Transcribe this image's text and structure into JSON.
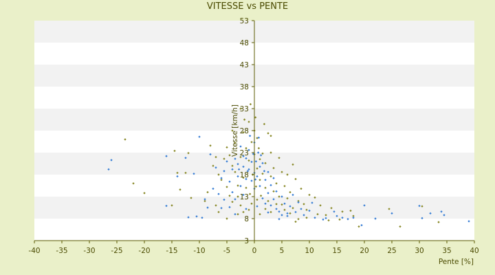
{
  "chart_data": {
    "type": "scatter",
    "title": "VITESSE vs PENTE",
    "xlabel": "Pente [%]",
    "ylabel": "Vitesse [km/h]",
    "xlim": [
      -40,
      40
    ],
    "ylim": [
      3,
      53
    ],
    "x_ticks": [
      -40,
      -35,
      -30,
      -25,
      -20,
      -15,
      -10,
      -5,
      0,
      5,
      10,
      15,
      20,
      25,
      30,
      35,
      40
    ],
    "y_ticks": [
      3,
      8,
      13,
      18,
      23,
      28,
      33,
      38,
      43,
      48,
      53
    ],
    "grid": "horizontal bands",
    "legend": "none",
    "colors": {
      "series_a": "#8a8a2a",
      "series_b": "#3a7fd5",
      "axis": "#5a5a00",
      "band": "#f2f2f2"
    },
    "series": [
      {
        "marker_color": "#8a8a2a",
        "points": [
          [
            -23.5,
            26
          ],
          [
            -22,
            16
          ],
          [
            -20,
            13.8
          ],
          [
            -14.5,
            23.4
          ],
          [
            -14,
            18.4
          ],
          [
            -13.5,
            14.6
          ],
          [
            -12.5,
            18.4
          ],
          [
            -12,
            22.9
          ],
          [
            -9,
            12
          ],
          [
            -8.5,
            14
          ],
          [
            -8,
            24.6
          ],
          [
            -7.5,
            20
          ],
          [
            -7,
            22
          ],
          [
            -6.5,
            18
          ],
          [
            -6,
            16.8
          ],
          [
            -5.5,
            21.6
          ],
          [
            -5,
            15.2
          ],
          [
            -5,
            24.2
          ],
          [
            -4.5,
            22.4
          ],
          [
            -4.5,
            13.2
          ],
          [
            -4,
            20
          ],
          [
            -4,
            11.8
          ],
          [
            -3.5,
            18.6
          ],
          [
            -3.5,
            25.2
          ],
          [
            -3,
            15.5
          ],
          [
            -3,
            13
          ],
          [
            -2.5,
            22
          ],
          [
            -2.5,
            11
          ],
          [
            -2,
            27.6
          ],
          [
            -2,
            17.3
          ],
          [
            -1.5,
            24
          ],
          [
            -1.5,
            15
          ],
          [
            -1,
            21.2
          ],
          [
            -1,
            30
          ],
          [
            -0.8,
            13.6
          ],
          [
            -0.5,
            25.4
          ],
          [
            -0.3,
            18
          ],
          [
            0,
            28
          ],
          [
            0,
            22.6
          ],
          [
            0.2,
            31
          ],
          [
            0.3,
            15.3
          ],
          [
            0.5,
            26.3
          ],
          [
            0.5,
            19.4
          ],
          [
            0.8,
            24
          ],
          [
            1,
            21.5
          ],
          [
            1,
            16.8
          ],
          [
            1.2,
            13.2
          ],
          [
            1.5,
            22.8
          ],
          [
            1.5,
            18.2
          ],
          [
            2,
            20.6
          ],
          [
            2,
            15
          ],
          [
            2.5,
            27.4
          ],
          [
            2.5,
            12
          ],
          [
            3,
            23
          ],
          [
            3,
            17.6
          ],
          [
            3.5,
            14.2
          ],
          [
            3.5,
            19.5
          ],
          [
            4,
            16
          ],
          [
            4.5,
            21.8
          ],
          [
            4.5,
            13
          ],
          [
            5,
            18.6
          ],
          [
            5,
            11.2
          ],
          [
            5.5,
            15.4
          ],
          [
            6,
            12.6
          ],
          [
            6,
            18
          ],
          [
            6.5,
            14
          ],
          [
            7,
            20.3
          ],
          [
            7,
            10.4
          ],
          [
            7.5,
            17
          ],
          [
            8,
            12
          ],
          [
            8.5,
            14.8
          ],
          [
            9,
            11.3
          ],
          [
            9.5,
            10
          ],
          [
            10,
            13.4
          ],
          [
            11,
            12.8
          ],
          [
            12,
            11
          ],
          [
            13,
            8.8
          ],
          [
            14,
            10.4
          ],
          [
            16,
            9.6
          ],
          [
            17.5,
            9.8
          ],
          [
            18,
            8.6
          ],
          [
            19,
            6.2
          ],
          [
            24.5,
            10.2
          ],
          [
            26.5,
            6.2
          ],
          [
            30.5,
            10.8
          ],
          [
            33.5,
            7.2
          ],
          [
            -15,
            11
          ],
          [
            -11.5,
            12.7
          ],
          [
            -7,
            11
          ],
          [
            -3,
            9
          ],
          [
            -1,
            10
          ],
          [
            1,
            9
          ],
          [
            3,
            9.5
          ],
          [
            5.5,
            10
          ],
          [
            7.5,
            7.3
          ],
          [
            8,
            7.9
          ],
          [
            2,
            10.2
          ],
          [
            0.5,
            12.3
          ],
          [
            -0.5,
            11.4
          ],
          [
            -2,
            9.5
          ],
          [
            -5,
            8
          ],
          [
            -6.5,
            9.5
          ],
          [
            4,
            11.3
          ],
          [
            6.5,
            9.2
          ],
          [
            9.5,
            8.2
          ],
          [
            11.5,
            9
          ],
          [
            15.5,
            7.8
          ],
          [
            13.5,
            7.6
          ],
          [
            -4,
            28
          ],
          [
            -2.5,
            33
          ],
          [
            -1.8,
            30.5
          ],
          [
            1.8,
            29.5
          ],
          [
            3,
            26.8
          ],
          [
            -0.7,
            34
          ]
        ]
      },
      {
        "marker_color": "#3a7fd5",
        "points": [
          [
            -26.5,
            19.2
          ],
          [
            -26,
            21.3
          ],
          [
            -16,
            22.2
          ],
          [
            -16,
            10.9
          ],
          [
            -14,
            17.6
          ],
          [
            -12.5,
            21.8
          ],
          [
            -11,
            18.2
          ],
          [
            -10.5,
            8.5
          ],
          [
            -10,
            26.6
          ],
          [
            -9.5,
            8.2
          ],
          [
            -8.5,
            10.5
          ],
          [
            -8,
            22.6
          ],
          [
            -7.5,
            14.8
          ],
          [
            -7,
            19.6
          ],
          [
            -6.5,
            13.6
          ],
          [
            -6,
            17.2
          ],
          [
            -5.5,
            12.3
          ],
          [
            -5.5,
            18.8
          ],
          [
            -5,
            21
          ],
          [
            -4.5,
            16.4
          ],
          [
            -4.5,
            10.6
          ],
          [
            -4,
            19.2
          ],
          [
            -4,
            14
          ],
          [
            -3.5,
            21.6
          ],
          [
            -3.5,
            12.4
          ],
          [
            -3,
            17.6
          ],
          [
            -3,
            20.4
          ],
          [
            -2.5,
            15.4
          ],
          [
            -2.5,
            24.4
          ],
          [
            -2,
            19.8
          ],
          [
            -2,
            13.4
          ],
          [
            -1.5,
            21.7
          ],
          [
            -1.5,
            17
          ],
          [
            -1,
            19.2
          ],
          [
            -1,
            23.6
          ],
          [
            -0.5,
            16.6
          ],
          [
            -0.5,
            20.9
          ],
          [
            0,
            18.4
          ],
          [
            0,
            25.3
          ],
          [
            0,
            14.8
          ],
          [
            0.3,
            21
          ],
          [
            0.5,
            17.6
          ],
          [
            0.7,
            23
          ],
          [
            1,
            19.8
          ],
          [
            1,
            15.4
          ],
          [
            1.5,
            12.6
          ],
          [
            1.5,
            20.6
          ],
          [
            2,
            16.8
          ],
          [
            2,
            11.4
          ],
          [
            2.5,
            18.6
          ],
          [
            2.5,
            13.8
          ],
          [
            3,
            15.6
          ],
          [
            3,
            11
          ],
          [
            3.5,
            12.4
          ],
          [
            3.5,
            17.2
          ],
          [
            4,
            10.2
          ],
          [
            4,
            14.2
          ],
          [
            4.5,
            9.6
          ],
          [
            5,
            13
          ],
          [
            5,
            8.8
          ],
          [
            5.5,
            11.4
          ],
          [
            6,
            9.2
          ],
          [
            6.5,
            10.8
          ],
          [
            7,
            13.4
          ],
          [
            7.5,
            9.5
          ],
          [
            8,
            11.7
          ],
          [
            8.5,
            10.2
          ],
          [
            9,
            8.8
          ],
          [
            10,
            9.8
          ],
          [
            10.5,
            11.6
          ],
          [
            11,
            8.2
          ],
          [
            12.5,
            7.8
          ],
          [
            13,
            8.1
          ],
          [
            14.5,
            9.6
          ],
          [
            15,
            8.6
          ],
          [
            16,
            8.2
          ],
          [
            17,
            7.9
          ],
          [
            18,
            8.2
          ],
          [
            19.5,
            6.5
          ],
          [
            20,
            11
          ],
          [
            22,
            8
          ],
          [
            25,
            9.2
          ],
          [
            30,
            10.9
          ],
          [
            30.5,
            8.1
          ],
          [
            32,
            9.2
          ],
          [
            34,
            9.6
          ],
          [
            34.5,
            8.8
          ],
          [
            39,
            7.4
          ],
          [
            -12,
            8.3
          ],
          [
            -9,
            12.4
          ],
          [
            -6,
            10.4
          ],
          [
            -3.5,
            9
          ],
          [
            -1.5,
            10.2
          ],
          [
            0.5,
            10.8
          ],
          [
            2.5,
            9.4
          ],
          [
            4.5,
            7.9
          ],
          [
            6,
            8.6
          ],
          [
            -2,
            22.2
          ],
          [
            -0.8,
            26.8
          ],
          [
            0.8,
            26.4
          ],
          [
            1.2,
            22.4
          ],
          [
            -1.2,
            18.8
          ],
          [
            0.2,
            16.9
          ],
          [
            -0.2,
            22.7
          ],
          [
            1.8,
            18.8
          ],
          [
            -2.8,
            19.2
          ]
        ]
      }
    ]
  }
}
